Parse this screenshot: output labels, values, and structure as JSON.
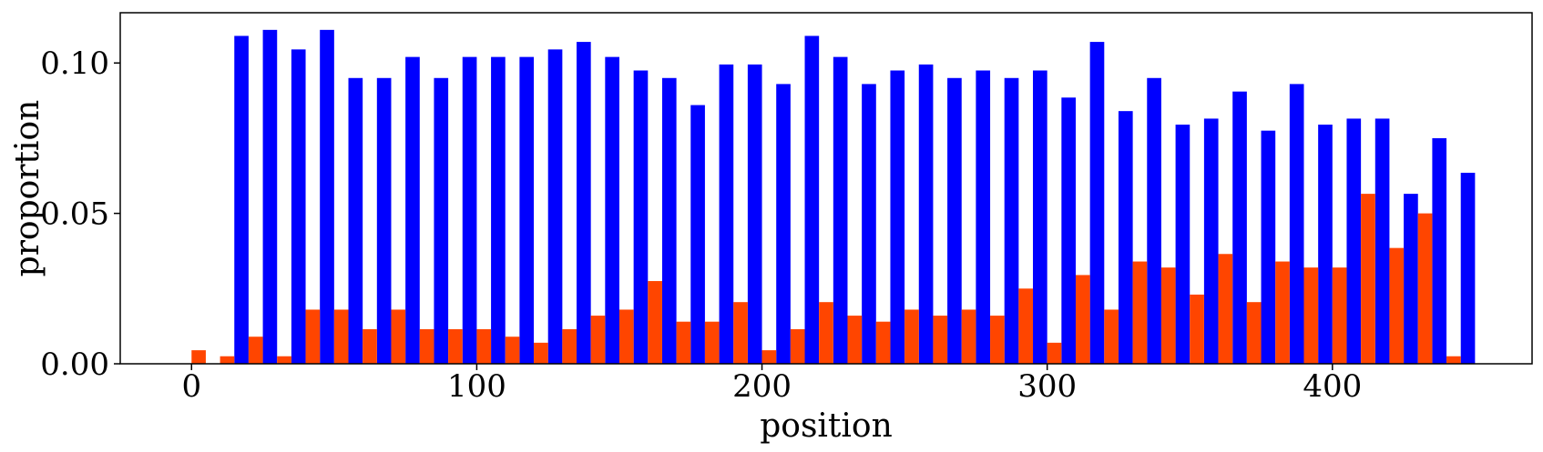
{
  "chart_data": {
    "type": "bar",
    "title": "",
    "xlabel": "position",
    "ylabel": "proportion",
    "xlim": [
      -25,
      470
    ],
    "ylim": [
      0,
      0.1167
    ],
    "xticks": [
      0,
      100,
      200,
      300,
      400
    ],
    "xtick_labels": [
      "0",
      "100",
      "200",
      "300",
      "400"
    ],
    "yticks": [
      0,
      0.05,
      0.1
    ],
    "ytick_labels": [
      "0.00",
      "0.05",
      "0.10"
    ],
    "bin_width": 10,
    "x": [
      0,
      10,
      20,
      30,
      40,
      50,
      60,
      70,
      80,
      90,
      100,
      110,
      120,
      130,
      140,
      150,
      160,
      170,
      180,
      190,
      200,
      210,
      220,
      230,
      240,
      250,
      260,
      270,
      280,
      290,
      300,
      310,
      320,
      330,
      340,
      350,
      360,
      370,
      380,
      390,
      400,
      410,
      420,
      430,
      440
    ],
    "series": [
      {
        "color": "#0000ff",
        "offset": 5,
        "values": [
          0,
          0.109,
          0.111,
          0.1045,
          0.111,
          0.095,
          0.095,
          0.102,
          0.095,
          0.102,
          0.102,
          0.102,
          0.1045,
          0.107,
          0.102,
          0.0975,
          0.095,
          0.086,
          0.0995,
          0.0995,
          0.093,
          0.109,
          0.102,
          0.093,
          0.0975,
          0.0995,
          0.095,
          0.0975,
          0.095,
          0.0975,
          0.0885,
          0.107,
          0.084,
          0.095,
          0.0795,
          0.0815,
          0.0905,
          0.0775,
          0.093,
          0.0795,
          0.0815,
          0.0815,
          0.0565,
          0.075,
          0.0635
        ]
      },
      {
        "color": "#ff4500",
        "offset": 0,
        "values": [
          0.0045,
          0.0025,
          0.009,
          0.0025,
          0.018,
          0.018,
          0.0115,
          0.018,
          0.0115,
          0.0115,
          0.0115,
          0.009,
          0.007,
          0.0115,
          0.016,
          0.018,
          0.0275,
          0.014,
          0.014,
          0.0205,
          0.0045,
          0.0115,
          0.0205,
          0.016,
          0.014,
          0.018,
          0.016,
          0.018,
          0.016,
          0.025,
          0.007,
          0.0295,
          0.018,
          0.034,
          0.032,
          0.023,
          0.0365,
          0.0205,
          0.034,
          0.032,
          0.032,
          0.0565,
          0.0385,
          0.05,
          0.0025
        ]
      }
    ]
  }
}
